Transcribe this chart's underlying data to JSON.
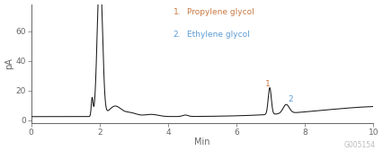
{
  "title": "",
  "xlabel": "Min",
  "ylabel": "pA",
  "xlim": [
    0,
    10
  ],
  "ylim": [
    -2,
    78
  ],
  "yticks": [
    0,
    20,
    40,
    60
  ],
  "xticks": [
    0,
    2,
    4,
    6,
    8,
    10
  ],
  "legend_entries_num": [
    "1.",
    "2."
  ],
  "legend_entries_text": [
    "Propylene glycol",
    "Ethylene glycol"
  ],
  "legend_colors": [
    "#c87941",
    "#5b9bd5"
  ],
  "peak1_label": "1",
  "peak1_x": 6.97,
  "peak1_y": 20,
  "peak2_label": "2",
  "peak2_x": 7.52,
  "peak2_y": 10,
  "line_color": "#1a1a1a",
  "axis_color": "#666666",
  "watermark": "G005154",
  "watermark_color": "#bbbbbb",
  "background_color": "#ffffff"
}
